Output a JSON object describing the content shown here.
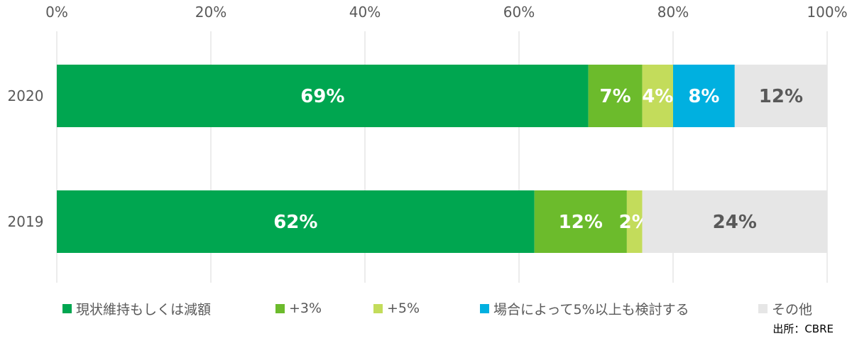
{
  "chart_data": {
    "type": "bar",
    "orientation": "horizontal",
    "stacked": "percent",
    "categories": [
      "2020",
      "2019"
    ],
    "series": [
      {
        "name": "現状維持もしくは減額",
        "color": "#00A650",
        "label_color": "#ffffff",
        "values": [
          69,
          62
        ],
        "labels": [
          "69%",
          "62%"
        ]
      },
      {
        "name": "+3%",
        "color": "#6CBB2C",
        "label_color": "#ffffff",
        "values": [
          7,
          12
        ],
        "labels": [
          "7%",
          "12%"
        ]
      },
      {
        "name": "+5%",
        "color": "#C3DC5B",
        "label_color": "#ffffff",
        "values": [
          4,
          2
        ],
        "labels": [
          "4%",
          "2%"
        ]
      },
      {
        "name": "場合によって5%以上も検討する",
        "color": "#00B0E0",
        "label_color": "#ffffff",
        "values": [
          8,
          0
        ],
        "labels": [
          "8%",
          ""
        ]
      },
      {
        "name": "その他",
        "color": "#E6E6E6",
        "label_color": "#595959",
        "values": [
          12,
          24
        ],
        "labels": [
          "12%",
          "24%"
        ]
      }
    ],
    "x_ticks": [
      "0%",
      "20%",
      "40%",
      "60%",
      "80%",
      "100%"
    ],
    "xlim": [
      0,
      100
    ],
    "grid": true,
    "legend_position": "bottom"
  },
  "source": "出所：CBRE"
}
